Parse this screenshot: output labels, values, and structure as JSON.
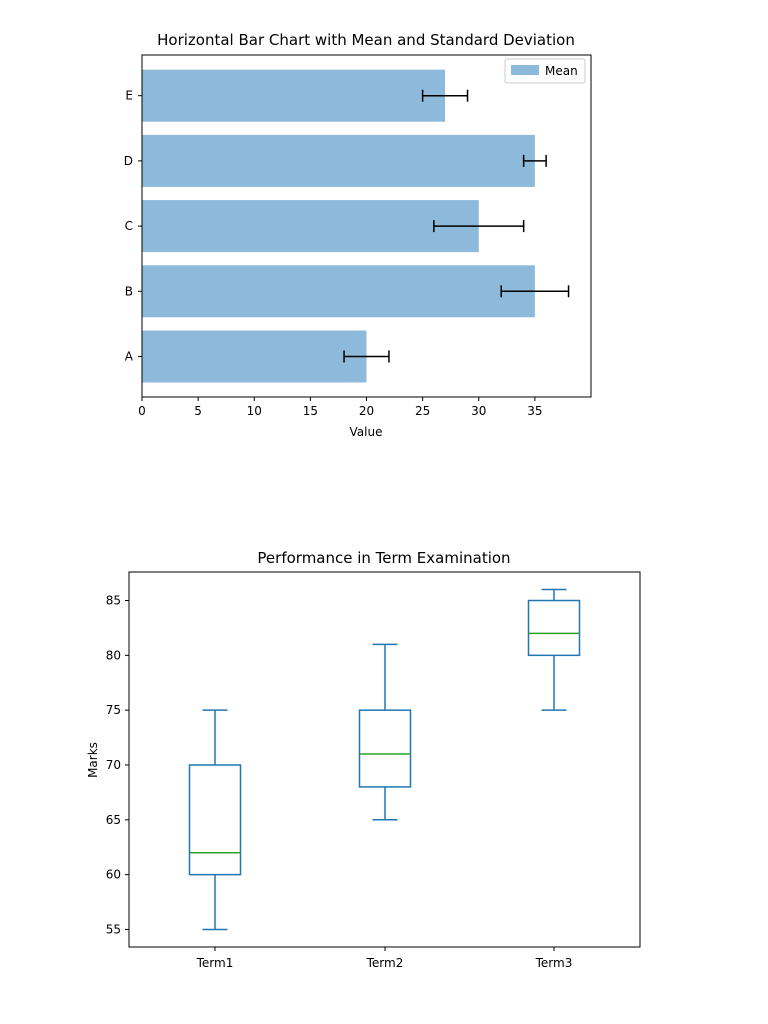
{
  "chart_data": [
    {
      "type": "bar",
      "orientation": "horizontal",
      "title": "Horizontal Bar Chart with Mean and Standard Deviation",
      "xlabel": "Value",
      "ylabel": "",
      "categories": [
        "A",
        "B",
        "C",
        "D",
        "E"
      ],
      "series": [
        {
          "name": "Mean",
          "values": [
            20,
            35,
            30,
            35,
            27
          ]
        }
      ],
      "error": [
        2,
        3,
        4,
        1,
        2
      ],
      "xlim": [
        0,
        40
      ],
      "xticks": [
        "0",
        "5",
        "10",
        "15",
        "20",
        "25",
        "30",
        "35"
      ],
      "legend": "top-right",
      "grid": false,
      "colors": {
        "bar": "#8db9da",
        "error": "#000000"
      }
    },
    {
      "type": "box",
      "title": "Performance in Term Examination",
      "xlabel": "",
      "ylabel": "Marks",
      "categories": [
        "Term1",
        "Term2",
        "Term3"
      ],
      "boxes": [
        {
          "whisker_low": 55,
          "q1": 60,
          "median": 62,
          "q3": 70,
          "whisker_high": 75
        },
        {
          "whisker_low": 65,
          "q1": 68,
          "median": 71,
          "q3": 75,
          "whisker_high": 81
        },
        {
          "whisker_low": 75,
          "q1": 80,
          "median": 82,
          "q3": 85,
          "whisker_high": 86
        }
      ],
      "ylim": [
        53.4,
        87.6
      ],
      "yticks": [
        "55",
        "60",
        "65",
        "70",
        "75",
        "80",
        "85"
      ],
      "grid": false,
      "colors": {
        "box": "#1f77b4",
        "median": "#2ca02c"
      }
    }
  ]
}
